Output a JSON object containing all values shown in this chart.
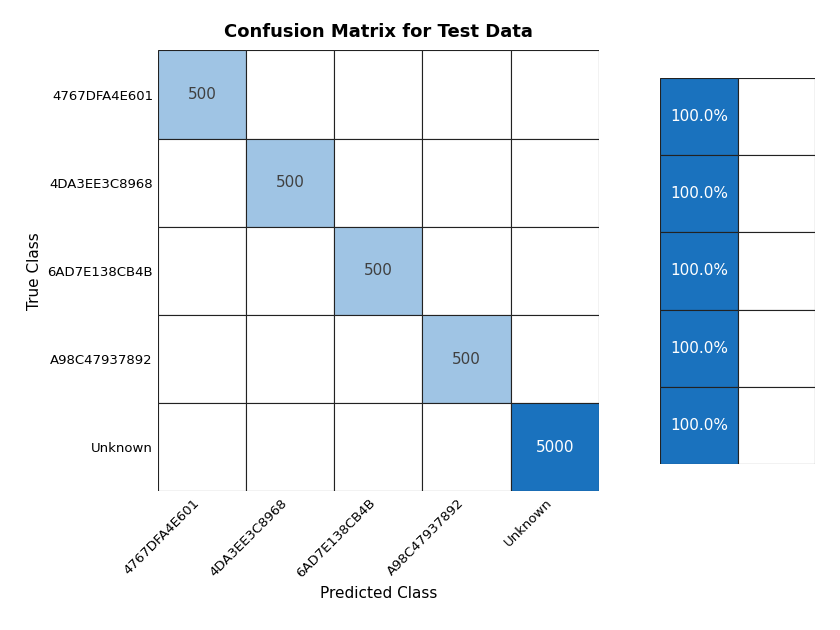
{
  "title": "Confusion Matrix for Test Data",
  "classes": [
    "4767DFA4E601",
    "4DA3EE3C8968",
    "6AD7E138CB4B",
    "A98C47937892",
    "Unknown"
  ],
  "matrix": [
    [
      500,
      0,
      0,
      0,
      0
    ],
    [
      0,
      500,
      0,
      0,
      0
    ],
    [
      0,
      0,
      500,
      0,
      0
    ],
    [
      0,
      0,
      0,
      500,
      0
    ],
    [
      0,
      0,
      0,
      0,
      5000
    ]
  ],
  "summary_col_values": [
    "100.0%",
    "100.0%",
    "100.0%",
    "100.0%",
    "100.0%"
  ],
  "summary_col_color": "#1a72be",
  "xlabel": "Predicted Class",
  "ylabel": "True Class",
  "light_blue": "#aecde8",
  "dark_blue": "#1a72be",
  "white": "#ffffff",
  "text_dark": "#404040",
  "text_light": "#ffffff",
  "title_fontsize": 13,
  "label_fontsize": 11,
  "tick_fontsize": 9.5,
  "cell_fontsize": 11,
  "figsize": [
    8.4,
    6.3
  ],
  "dpi": 100
}
